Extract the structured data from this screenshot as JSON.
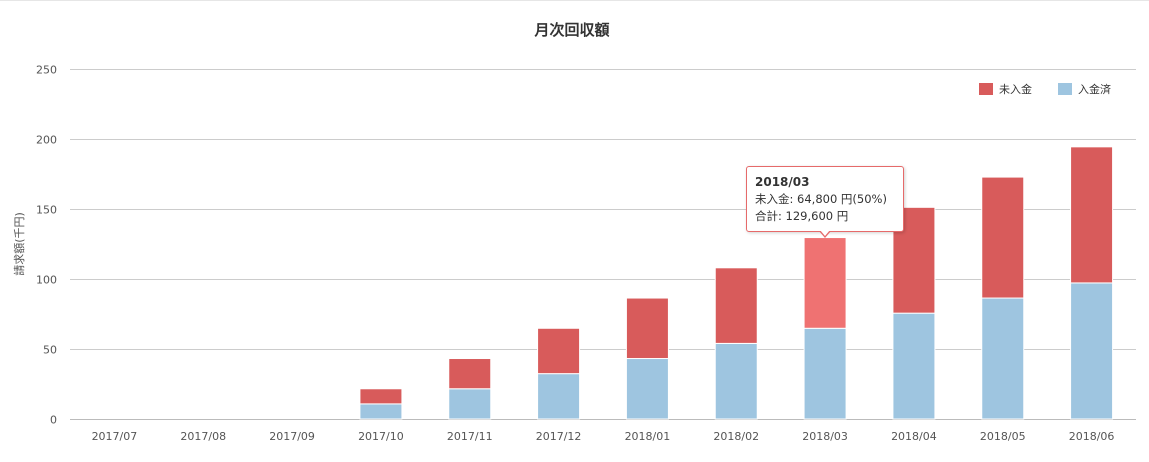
{
  "colors": {
    "unpaid": "#d85b5b",
    "unpaid_highlight": "#ef7272",
    "paid": "#9ec5e0",
    "grid": "#cccccc",
    "axis_text": "#555555"
  },
  "chart_data": {
    "type": "bar",
    "stacked": true,
    "title": "月次回収額",
    "xlabel": "",
    "ylabel": "請求額(千円)",
    "ylim": [
      0,
      250
    ],
    "yticks": [
      0,
      50,
      100,
      150,
      200,
      250
    ],
    "grid": true,
    "legend_position": "top-right",
    "categories": [
      "2017/07",
      "2017/08",
      "2017/09",
      "2017/10",
      "2017/11",
      "2017/12",
      "2018/01",
      "2018/02",
      "2018/03",
      "2018/04",
      "2018/05",
      "2018/06"
    ],
    "series": [
      {
        "name": "入金済",
        "color": "#9ec5e0",
        "values": [
          0,
          0,
          0,
          10.8,
          21.6,
          32.4,
          43.2,
          54.0,
          64.8,
          75.6,
          86.4,
          97.2
        ]
      },
      {
        "name": "未入金",
        "color": "#d85b5b",
        "values": [
          0,
          0,
          0,
          10.8,
          21.6,
          32.4,
          43.2,
          54.0,
          64.8,
          75.6,
          86.4,
          97.2
        ]
      }
    ],
    "legend_order": [
      "未入金",
      "入金済"
    ],
    "highlight_index": 8
  },
  "tooltip": {
    "title": "2018/03",
    "line1": "未入金: 64,800 円(50%)",
    "line2": "合計: 129,600 円"
  }
}
